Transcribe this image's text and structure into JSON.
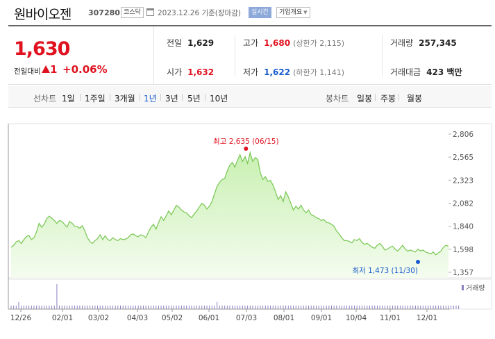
{
  "header": {
    "name": "원바이오젠",
    "code": "307280",
    "market": "코스닥",
    "date_text": "2023.12.26  기준(장마감)",
    "realtime_label": "실시간",
    "company_label": "기업개요"
  },
  "price": {
    "current": "1,630",
    "change_label": "전일대비",
    "change_value": "1",
    "change_pct": "+0.06%",
    "colors": {
      "up": "#e0121f",
      "down": "#1a5bcf"
    }
  },
  "stats": {
    "prev_close": {
      "label": "전일",
      "value": "1,629"
    },
    "high": {
      "label": "고가",
      "value": "1,680",
      "sub": "(상한가 2,115)"
    },
    "volume": {
      "label": "거래량",
      "value": "257,345"
    },
    "open": {
      "label": "시가",
      "value": "1,632"
    },
    "low": {
      "label": "저가",
      "value": "1,622",
      "sub": "(하한가 1,141)"
    },
    "amount": {
      "label": "거래대금",
      "value": "423 백만"
    }
  },
  "tabs": {
    "line_label": "선차트",
    "line_periods": [
      "1일",
      "1주일",
      "3개월",
      "1년",
      "3년",
      "5년",
      "10년"
    ],
    "active": "1년",
    "candle_label": "봉차트",
    "candle_periods": [
      "일봉",
      "주봉",
      "월봉"
    ]
  },
  "chart_data": {
    "type": "area",
    "y_ticks": [
      "2,806",
      "2,565",
      "2,323",
      "2,082",
      "1,840",
      "1,598",
      "1,357"
    ],
    "ylim": [
      1357,
      2806
    ],
    "x_ticks": [
      "12/26",
      "02/01",
      "03/02",
      "04/03",
      "05/02",
      "06/01",
      "07/03",
      "08/01",
      "09/01",
      "10/04",
      "11/01",
      "12/01"
    ],
    "high_annotation": "최고 2,635 (06/15)",
    "low_annotation": "최저 1,473 (11/30)",
    "volume_label": "거래량",
    "colors": {
      "line": "#7ec95a",
      "fill_top": "#c9f0b2",
      "fill_bottom": "#f4fcef",
      "high": "#e0121f",
      "low": "#1a5bcf",
      "volume": "#8a7fbf"
    },
    "series": [
      {
        "values": [
          1620,
          1640,
          1675,
          1690,
          1660,
          1700,
          1730,
          1745,
          1700,
          1720,
          1780,
          1870,
          1830,
          1860,
          1920,
          1945,
          1925,
          1900,
          1870,
          1900,
          1890,
          1860,
          1830,
          1890,
          1870,
          1840,
          1835,
          1820,
          1845,
          1790,
          1720,
          1680,
          1660,
          1690,
          1710,
          1750,
          1700,
          1740,
          1700,
          1690,
          1720,
          1700,
          1690,
          1710,
          1700,
          1705,
          1720,
          1750,
          1760,
          1740,
          1730,
          1750,
          1740,
          1720,
          1780,
          1830,
          1860,
          1810,
          1880,
          1940,
          1900,
          1950,
          2000,
          1960,
          2010,
          2060,
          2040,
          2010,
          1990,
          1980,
          1950,
          1930,
          1970,
          2000,
          2040,
          2080,
          2060,
          2020,
          2050,
          2100,
          2180,
          2260,
          2300,
          2330,
          2340,
          2420,
          2480,
          2510,
          2460,
          2530,
          2590,
          2520,
          2570,
          2500,
          2610,
          2520,
          2560,
          2540,
          2400,
          2330,
          2360,
          2310,
          2320,
          2270,
          2200,
          2120,
          2160,
          2100,
          2200,
          2150,
          2080,
          2010,
          2050,
          2020,
          2060,
          2010,
          1980,
          2010,
          1960,
          1950,
          1930,
          1920,
          1900,
          1910,
          1880,
          1875,
          1860,
          1840,
          1790,
          1760,
          1720,
          1690,
          1690,
          1680,
          1665,
          1700,
          1690,
          1710,
          1670,
          1650,
          1660,
          1640,
          1620,
          1610,
          1640,
          1660,
          1630,
          1590,
          1600,
          1620,
          1630,
          1600,
          1580,
          1610,
          1640,
          1600,
          1580,
          1590,
          1580,
          1570,
          1600,
          1580,
          1590,
          1570,
          1560,
          1550,
          1570,
          1540,
          1560,
          1580,
          1620,
          1640,
          1630
        ]
      },
      {
        "name": "거래량",
        "values": [
          1,
          1,
          1,
          2,
          1,
          1,
          1,
          1,
          1,
          1,
          1,
          1,
          1,
          1,
          1,
          1,
          1,
          1,
          7,
          1,
          1,
          1,
          1,
          1,
          1,
          1,
          1,
          1,
          1,
          1,
          1,
          1,
          1,
          1,
          1,
          1,
          1,
          1,
          1,
          1,
          1,
          1,
          1,
          1,
          1,
          1,
          1,
          1,
          1,
          1,
          1,
          1,
          1,
          1,
          1,
          1,
          1,
          1,
          1,
          1,
          1,
          1,
          1,
          1,
          1,
          1,
          1,
          1,
          1,
          1,
          1,
          1,
          1,
          1,
          1,
          1,
          1,
          1,
          1,
          1,
          1,
          2,
          1,
          1,
          1,
          1,
          1,
          1,
          1,
          1,
          1,
          1,
          1,
          1,
          1,
          1,
          1,
          1,
          1,
          1,
          1,
          1,
          1,
          1,
          1,
          1,
          1,
          1,
          1,
          1,
          1,
          1,
          1,
          1,
          1,
          1,
          1,
          1,
          1,
          1,
          1,
          1,
          1,
          1,
          1,
          1,
          1,
          1,
          1,
          1,
          1,
          1,
          1,
          1,
          1,
          1,
          1,
          1,
          1,
          1,
          1,
          1,
          1,
          1,
          1,
          1,
          1,
          1,
          1,
          1,
          1,
          1,
          1,
          1,
          1,
          1,
          1,
          1,
          1,
          1,
          1,
          1,
          1,
          1,
          1,
          1,
          1,
          1,
          1,
          1,
          1,
          1,
          1,
          1,
          1,
          1,
          1
        ]
      }
    ]
  }
}
